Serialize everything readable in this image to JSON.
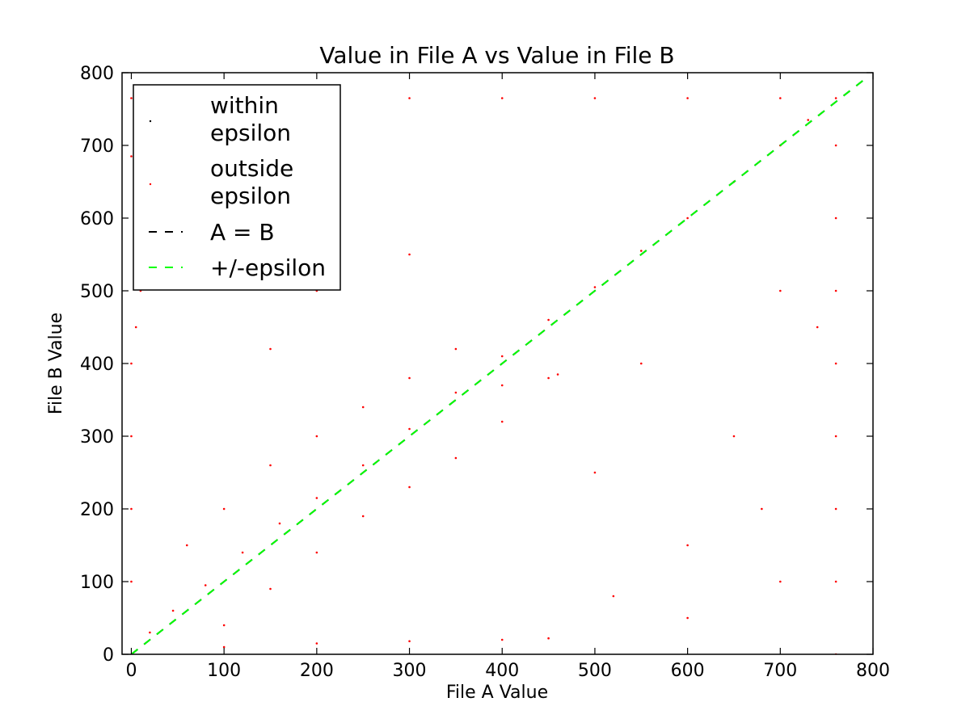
{
  "chart_data": {
    "type": "scatter",
    "title": "Value in File A vs Value in File B",
    "xlabel": "File A Value",
    "ylabel": "File B Value",
    "xlim": [
      -10,
      800
    ],
    "ylim": [
      0,
      800
    ],
    "xticks": [
      0,
      100,
      200,
      300,
      400,
      500,
      600,
      700,
      800
    ],
    "yticks": [
      0,
      100,
      200,
      300,
      400,
      500,
      600,
      700,
      800
    ],
    "grid": false,
    "legend_position": "upper-left",
    "series": [
      {
        "name": "within\nepsilon",
        "kind": "points",
        "color": "#000000",
        "points": [
          [
            5,
            700
          ],
          [
            85,
            725
          ]
        ]
      },
      {
        "name": "outside\nepsilon",
        "kind": "points",
        "color": "#ff0000",
        "points": [
          [
            20,
            30
          ],
          [
            45,
            60
          ],
          [
            80,
            95
          ],
          [
            120,
            140
          ],
          [
            160,
            180
          ],
          [
            200,
            215
          ],
          [
            250,
            260
          ],
          [
            300,
            310
          ],
          [
            350,
            360
          ],
          [
            400,
            410
          ],
          [
            450,
            460
          ],
          [
            500,
            505
          ],
          [
            550,
            555
          ],
          [
            600,
            600
          ],
          [
            650,
            650
          ],
          [
            700,
            700
          ],
          [
            730,
            735
          ],
          [
            100,
            40
          ],
          [
            150,
            90
          ],
          [
            200,
            140
          ],
          [
            250,
            190
          ],
          [
            300,
            230
          ],
          [
            350,
            270
          ],
          [
            400,
            320
          ],
          [
            60,
            150
          ],
          [
            100,
            200
          ],
          [
            150,
            260
          ],
          [
            200,
            300
          ],
          [
            250,
            340
          ],
          [
            300,
            380
          ],
          [
            350,
            420
          ],
          [
            0,
            100
          ],
          [
            0,
            200
          ],
          [
            0,
            300
          ],
          [
            0,
            400
          ],
          [
            5,
            450
          ],
          [
            10,
            500
          ],
          [
            100,
            10
          ],
          [
            200,
            15
          ],
          [
            300,
            18
          ],
          [
            400,
            20
          ],
          [
            450,
            22
          ],
          [
            450,
            380
          ],
          [
            460,
            385
          ],
          [
            400,
            370
          ],
          [
            0,
            765
          ],
          [
            100,
            765
          ],
          [
            200,
            765
          ],
          [
            300,
            765
          ],
          [
            400,
            765
          ],
          [
            500,
            765
          ],
          [
            600,
            765
          ],
          [
            700,
            765
          ],
          [
            760,
            765
          ],
          [
            760,
            0
          ],
          [
            760,
            100
          ],
          [
            760,
            200
          ],
          [
            760,
            300
          ],
          [
            760,
            400
          ],
          [
            760,
            500
          ],
          [
            760,
            600
          ],
          [
            760,
            700
          ],
          [
            0,
            685
          ],
          [
            10,
            680
          ],
          [
            100,
            600
          ],
          [
            200,
            500
          ],
          [
            150,
            420
          ],
          [
            300,
            550
          ],
          [
            500,
            250
          ],
          [
            600,
            150
          ],
          [
            700,
            100
          ],
          [
            650,
            300
          ],
          [
            550,
            400
          ],
          [
            700,
            500
          ],
          [
            740,
            450
          ],
          [
            600,
            50
          ],
          [
            680,
            200
          ],
          [
            520,
            80
          ]
        ]
      },
      {
        "name": "A = B",
        "kind": "line",
        "color": "#000000",
        "dash": "dashed",
        "x": [
          0,
          790
        ],
        "y": [
          0,
          790
        ]
      },
      {
        "name": "+/-epsilon",
        "kind": "line",
        "color": "#00ff00",
        "dash": "dashed",
        "x": [
          0,
          790
        ],
        "y": [
          0,
          790
        ]
      }
    ]
  }
}
